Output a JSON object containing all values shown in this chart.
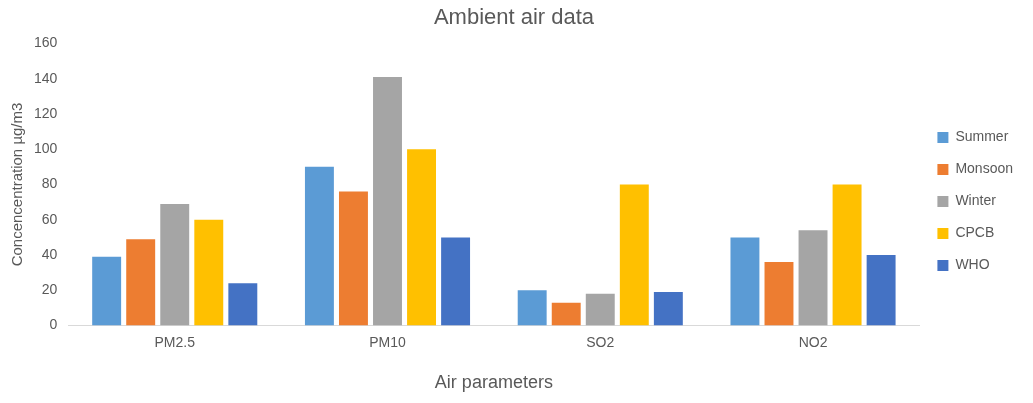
{
  "chart_data": {
    "type": "bar",
    "title": "Ambient air data",
    "xlabel": "Air parameters",
    "ylabel": "Concencentration µg/m3",
    "categories": [
      "PM2.5",
      "PM10",
      "SO2",
      "NO2"
    ],
    "series": [
      {
        "name": "Summer",
        "color": "#5b9bd5",
        "values": [
          39,
          90,
          20,
          50
        ]
      },
      {
        "name": "Monsoon",
        "color": "#ed7d31",
        "values": [
          49,
          76,
          13,
          36
        ]
      },
      {
        "name": "Winter",
        "color": "#a5a5a5",
        "values": [
          69,
          141,
          18,
          54
        ]
      },
      {
        "name": "CPCB",
        "color": "#ffc000",
        "values": [
          60,
          100,
          80,
          80
        ]
      },
      {
        "name": "WHO",
        "color": "#4472c4",
        "values": [
          24,
          50,
          19,
          40
        ]
      }
    ],
    "ylim": [
      0,
      160
    ],
    "yticks": [
      0,
      20,
      40,
      60,
      80,
      100,
      120,
      140,
      160
    ],
    "grid": false,
    "legend": "right"
  }
}
